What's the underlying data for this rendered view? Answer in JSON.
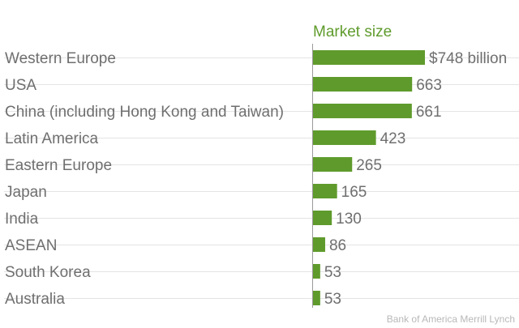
{
  "chart_data": {
    "type": "bar",
    "orientation": "horizontal",
    "column_title": "Market size",
    "categories": [
      "Western Europe",
      "USA",
      "China (including Hong Kong and Taiwan)",
      "Latin America",
      "Eastern Europe",
      "Japan",
      "India",
      "ASEAN",
      "South Korea",
      "Australia"
    ],
    "values": [
      748,
      663,
      661,
      423,
      265,
      165,
      130,
      86,
      53,
      53
    ],
    "value_labels": [
      "$748 billion",
      "663",
      "661",
      "423",
      "265",
      "165",
      "130",
      "86",
      "53",
      "53"
    ],
    "xlim": [
      0,
      748
    ],
    "grid": true,
    "source": "Bank of America Merrill Lynch",
    "colors": {
      "bar": "#5f9b2c",
      "title": "#5f9b2c",
      "text": "#6f6f6f",
      "source": "#b8b8b8"
    }
  }
}
